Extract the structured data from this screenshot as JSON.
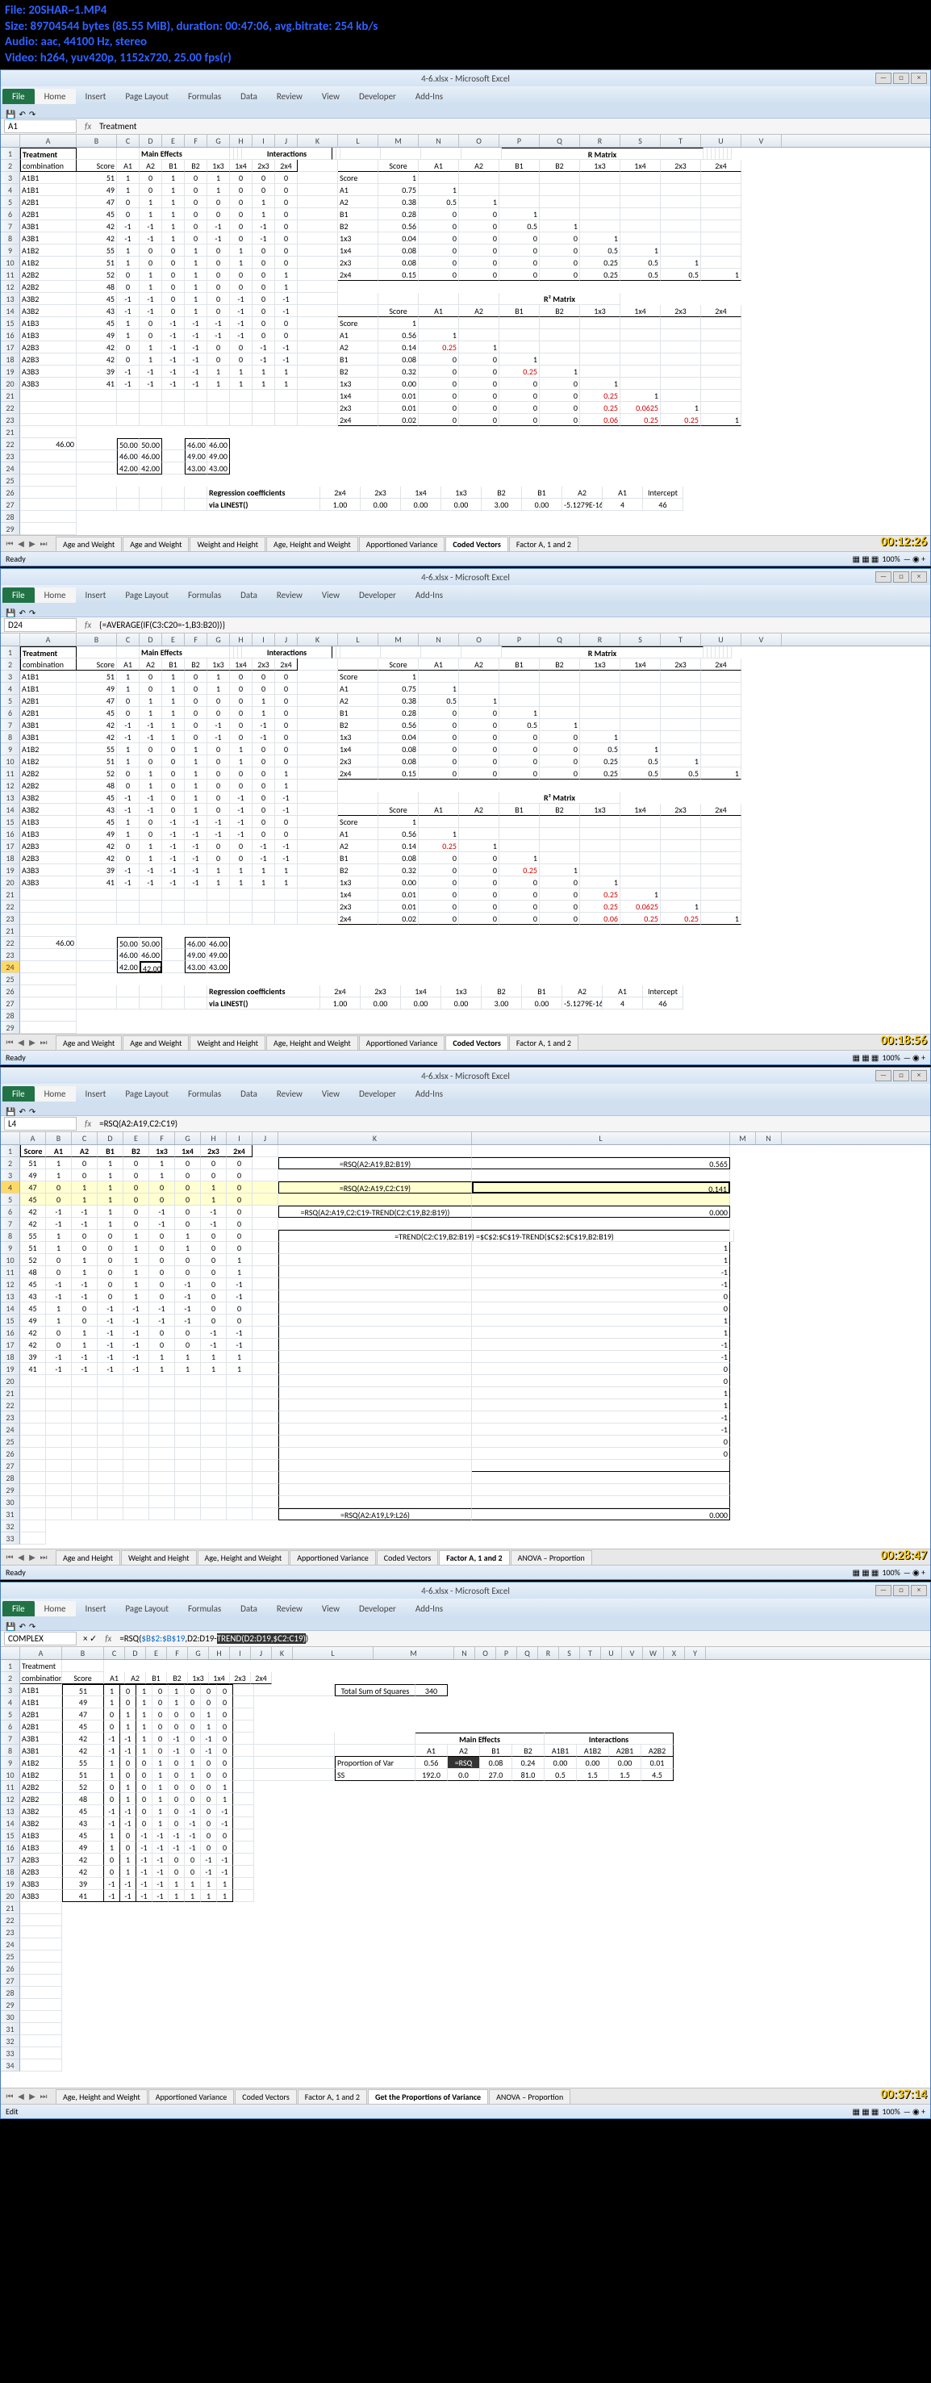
{
  "video": {
    "file": "File: 20SHAR~1.MP4",
    "size": "Size: 89704544 bytes (85.55 MiB), duration: 00:47:06, avg.bitrate: 254 kb/s",
    "audio": "Audio: aac, 44100 Hz, stereo",
    "video_line": "Video: h264, yuv420p, 1152x720, 25.00 fps(r)"
  },
  "pane1": {
    "title": "4-6.xlsx - Microsoft Excel",
    "tabs": [
      "File",
      "Home",
      "Insert",
      "Page Layout",
      "Formulas",
      "Data",
      "Review",
      "View",
      "Developer",
      "Add-Ins"
    ],
    "name_box": "A1",
    "formula": "Treatment",
    "cols": [
      "A",
      "B",
      "C",
      "D",
      "E",
      "F",
      "G",
      "H",
      "I",
      "J",
      "K",
      "L",
      "M",
      "N",
      "O",
      "P",
      "Q",
      "R",
      "S",
      "T",
      "U",
      "V"
    ],
    "headers1": [
      "Treatment",
      "",
      "Main Effects",
      "",
      "",
      "",
      "Interactions",
      "",
      "",
      ""
    ],
    "headers2": [
      "combination",
      "Score",
      "A1",
      "A2",
      "B1",
      "B2",
      "1x3",
      "1x4",
      "2x3",
      "2x4"
    ],
    "data_rows": [
      [
        "A1B1",
        "51",
        "1",
        "0",
        "1",
        "0",
        "1",
        "0",
        "0",
        "0"
      ],
      [
        "A1B1",
        "49",
        "1",
        "0",
        "1",
        "0",
        "1",
        "0",
        "0",
        "0"
      ],
      [
        "A2B1",
        "47",
        "0",
        "1",
        "1",
        "0",
        "0",
        "0",
        "1",
        "0"
      ],
      [
        "A2B1",
        "45",
        "0",
        "1",
        "1",
        "0",
        "0",
        "0",
        "1",
        "0"
      ],
      [
        "A3B1",
        "42",
        "-1",
        "-1",
        "1",
        "0",
        "-1",
        "0",
        "-1",
        "0"
      ],
      [
        "A3B1",
        "42",
        "-1",
        "-1",
        "1",
        "0",
        "-1",
        "0",
        "-1",
        "0"
      ],
      [
        "A1B2",
        "55",
        "1",
        "0",
        "0",
        "1",
        "0",
        "1",
        "0",
        "0"
      ],
      [
        "A1B2",
        "51",
        "1",
        "0",
        "0",
        "1",
        "0",
        "1",
        "0",
        "0"
      ],
      [
        "A2B2",
        "52",
        "0",
        "1",
        "0",
        "1",
        "0",
        "0",
        "0",
        "1"
      ],
      [
        "A2B2",
        "48",
        "0",
        "1",
        "0",
        "1",
        "0",
        "0",
        "0",
        "1"
      ],
      [
        "A3B2",
        "45",
        "-1",
        "-1",
        "0",
        "1",
        "0",
        "-1",
        "0",
        "-1"
      ],
      [
        "A3B2",
        "43",
        "-1",
        "-1",
        "0",
        "1",
        "0",
        "-1",
        "0",
        "-1"
      ],
      [
        "A1B3",
        "45",
        "1",
        "0",
        "-1",
        "-1",
        "-1",
        "-1",
        "0",
        "0"
      ],
      [
        "A1B3",
        "49",
        "1",
        "0",
        "-1",
        "-1",
        "-1",
        "-1",
        "0",
        "0"
      ],
      [
        "A2B3",
        "42",
        "0",
        "1",
        "-1",
        "-1",
        "0",
        "0",
        "-1",
        "-1"
      ],
      [
        "A2B3",
        "42",
        "0",
        "1",
        "-1",
        "-1",
        "0",
        "0",
        "-1",
        "-1"
      ],
      [
        "A3B3",
        "39",
        "-1",
        "-1",
        "-1",
        "-1",
        "1",
        "1",
        "1",
        "1"
      ],
      [
        "A3B3",
        "41",
        "-1",
        "-1",
        "-1",
        "-1",
        "1",
        "1",
        "1",
        "1"
      ]
    ],
    "total": "46.00",
    "box1": [
      [
        "50.00",
        "50.00"
      ],
      [
        "46.00",
        "46.00"
      ],
      [
        "42.00",
        "42.00"
      ]
    ],
    "box2": [
      [
        "46.00",
        "46.00"
      ],
      [
        "49.00",
        "49.00"
      ],
      [
        "43.00",
        "43.00"
      ]
    ],
    "rmatrix_title": "R Matrix",
    "rmatrix_cols": [
      "",
      "Score",
      "A1",
      "A2",
      "B1",
      "B2",
      "1x3",
      "1x4",
      "2x3",
      "2x4"
    ],
    "rmatrix": [
      [
        "Score",
        "1",
        "",
        "",
        "",
        "",
        "",
        "",
        "",
        ""
      ],
      [
        "A1",
        "0.75",
        "1",
        "",
        "",
        "",
        "",
        "",
        "",
        ""
      ],
      [
        "A2",
        "0.38",
        "0.5",
        "1",
        "",
        "",
        "",
        "",
        "",
        ""
      ],
      [
        "B1",
        "0.28",
        "0",
        "0",
        "1",
        "",
        "",
        "",
        "",
        ""
      ],
      [
        "B2",
        "0.56",
        "0",
        "0",
        "0.5",
        "1",
        "",
        "",
        "",
        ""
      ],
      [
        "1x3",
        "0.04",
        "0",
        "0",
        "0",
        "0",
        "1",
        "",
        "",
        ""
      ],
      [
        "1x4",
        "0.08",
        "0",
        "0",
        "0",
        "0",
        "0.5",
        "1",
        "",
        ""
      ],
      [
        "2x3",
        "0.08",
        "0",
        "0",
        "0",
        "0",
        "0.25",
        "0.5",
        "1",
        ""
      ],
      [
        "2x4",
        "0.15",
        "0",
        "0",
        "0",
        "0",
        "0.25",
        "0.5",
        "0.5",
        "1"
      ]
    ],
    "r2matrix_title": "R² Matrix",
    "r2matrix": [
      [
        "Score",
        "1",
        "",
        "",
        "",
        "",
        "",
        "",
        "",
        ""
      ],
      [
        "A1",
        "0.56",
        "1",
        "",
        "",
        "",
        "",
        "",
        "",
        ""
      ],
      [
        "A2",
        "0.14",
        "0.25",
        "1",
        "",
        "",
        "",
        "",
        "",
        ""
      ],
      [
        "B1",
        "0.08",
        "0",
        "0",
        "1",
        "",
        "",
        "",
        "",
        ""
      ],
      [
        "B2",
        "0.32",
        "0",
        "0",
        "0.25",
        "1",
        "",
        "",
        "",
        ""
      ],
      [
        "1x3",
        "0.00",
        "0",
        "0",
        "0",
        "0",
        "1",
        "",
        "",
        ""
      ],
      [
        "1x4",
        "0.01",
        "0",
        "0",
        "0",
        "0",
        "0.25",
        "1",
        "",
        ""
      ],
      [
        "2x3",
        "0.01",
        "0",
        "0",
        "0",
        "0",
        "0.25",
        "0.0625",
        "1",
        ""
      ],
      [
        "2x4",
        "0.02",
        "0",
        "0",
        "0",
        "0",
        "0.06",
        "0.25",
        "0.25",
        "1"
      ]
    ],
    "regr_label": "Regression coefficients",
    "regr_sub": "via LINEST()",
    "regr_cols": [
      "2x4",
      "2x3",
      "1x4",
      "1x3",
      "B2",
      "B1",
      "A2",
      "A1",
      "Intercept"
    ],
    "regr_vals": [
      "1.00",
      "0.00",
      "0.00",
      "0.00",
      "3.00",
      "0.00",
      "-5.1279E-16",
      "4",
      "46"
    ],
    "sheet_tabs": [
      "Age and Weight",
      "Age and Weight",
      "Weight and Height",
      "Age, Height and Weight",
      "Apportioned Variance",
      "Coded Vectors",
      "Factor A, 1 and 2"
    ],
    "active_sheet": 5,
    "status": "Ready",
    "zoom": "100%",
    "timestamp": "00:12:26"
  },
  "pane2": {
    "title": "4-6.xlsx - Microsoft Excel",
    "name_box": "D24",
    "formula": "{=AVERAGE(IF(C3:C20=-1,B3:B20))}",
    "timestamp": "00:18:56"
  },
  "pane3": {
    "title": "4-6.xlsx - Microsoft Excel",
    "name_box": "L4",
    "formula": "=RSQ(A2:A19,C2:C19)",
    "cols": [
      "A",
      "B",
      "C",
      "D",
      "E",
      "F",
      "G",
      "H",
      "I",
      "J",
      "K",
      "L",
      "M",
      "N"
    ],
    "headers": [
      "Score",
      "A1",
      "A2",
      "B1",
      "B2",
      "1x3",
      "1x4",
      "2x3",
      "2x4"
    ],
    "data_rows": [
      [
        "51",
        "1",
        "0",
        "1",
        "0",
        "1",
        "0",
        "0",
        "0"
      ],
      [
        "49",
        "1",
        "0",
        "1",
        "0",
        "1",
        "0",
        "0",
        "0"
      ],
      [
        "47",
        "0",
        "1",
        "1",
        "0",
        "0",
        "0",
        "1",
        "0"
      ],
      [
        "45",
        "0",
        "1",
        "1",
        "0",
        "0",
        "0",
        "1",
        "0"
      ],
      [
        "42",
        "-1",
        "-1",
        "1",
        "0",
        "-1",
        "0",
        "-1",
        "0"
      ],
      [
        "42",
        "-1",
        "-1",
        "1",
        "0",
        "-1",
        "0",
        "-1",
        "0"
      ],
      [
        "55",
        "1",
        "0",
        "0",
        "1",
        "0",
        "1",
        "0",
        "0"
      ],
      [
        "51",
        "1",
        "0",
        "0",
        "1",
        "0",
        "1",
        "0",
        "0"
      ],
      [
        "52",
        "0",
        "1",
        "0",
        "1",
        "0",
        "0",
        "0",
        "1"
      ],
      [
        "48",
        "0",
        "1",
        "0",
        "1",
        "0",
        "0",
        "0",
        "1"
      ],
      [
        "45",
        "-1",
        "-1",
        "0",
        "1",
        "0",
        "-1",
        "0",
        "-1"
      ],
      [
        "43",
        "-1",
        "-1",
        "0",
        "1",
        "0",
        "-1",
        "0",
        "-1"
      ],
      [
        "45",
        "1",
        "0",
        "-1",
        "-1",
        "-1",
        "-1",
        "0",
        "0"
      ],
      [
        "49",
        "1",
        "0",
        "-1",
        "-1",
        "-1",
        "-1",
        "0",
        "0"
      ],
      [
        "42",
        "0",
        "1",
        "-1",
        "-1",
        "0",
        "0",
        "-1",
        "-1"
      ],
      [
        "42",
        "0",
        "1",
        "-1",
        "-1",
        "0",
        "0",
        "-1",
        "-1"
      ],
      [
        "39",
        "-1",
        "-1",
        "-1",
        "-1",
        "1",
        "1",
        "1",
        "1"
      ],
      [
        "41",
        "-1",
        "-1",
        "-1",
        "-1",
        "1",
        "1",
        "1",
        "1"
      ]
    ],
    "formulas": [
      {
        "f": "=RSQ(A2:A19,B2:B19)",
        "v": "0.565"
      },
      {
        "f": "=RSQ(A2:A19,C2:C19)",
        "v": "0.141"
      },
      {
        "f": "=RSQ(A2:A19,C2:C19-TREND(C2:C19,B2:B19))",
        "v": "0.000"
      },
      {
        "f": "=TREND(C2:C19,B2:B19) =$C$2:$C$19-TREND($C$2:$C$19,B2:B19)",
        "v": ""
      }
    ],
    "trend_vals": [
      "1",
      "1",
      "-1",
      "-1",
      "0",
      "0",
      "1",
      "1",
      "-1",
      "-1",
      "0",
      "0",
      "1",
      "1",
      "-1",
      "-1",
      "0",
      "0"
    ],
    "final_formula": "=RSQ(A2:A19,L9:L26)",
    "final_val": "0.000",
    "sheet_tabs": [
      "Age and Height",
      "Weight and Height",
      "Age, Height and Weight",
      "Apportioned Variance",
      "Coded Vectors",
      "Factor A, 1 and 2",
      "ANOVA – Proportion"
    ],
    "active_sheet": 5,
    "timestamp": "00:28:47"
  },
  "pane4": {
    "title": "4-6.xlsx - Microsoft Excel",
    "name_box": "COMPLEX",
    "formula_pre": "=RSQ(",
    "formula_a": "$B$2:$B$19",
    "formula_b": ",D2:D19-",
    "formula_c": "TREND(D2:D19,$C2:C19)",
    "formula_d": ")",
    "cols": [
      "A",
      "B",
      "C",
      "D",
      "E",
      "F",
      "G",
      "H",
      "I",
      "J",
      "K",
      "L",
      "M",
      "N",
      "O",
      "P",
      "Q",
      "R",
      "S",
      "T",
      "U",
      "V",
      "W",
      "X",
      "Y"
    ],
    "headers1": [
      "Treatment",
      "",
      "",
      "",
      "",
      "",
      "",
      "",
      "",
      ""
    ],
    "headers2": [
      "combination",
      "Score",
      "A1",
      "A2",
      "B1",
      "B2",
      "1x3",
      "1x4",
      "2x3",
      "2x4"
    ],
    "data_rows": [
      [
        "A1B1",
        "51",
        "1",
        "0",
        "1",
        "0",
        "1",
        "0",
        "0",
        "0"
      ],
      [
        "A1B1",
        "49",
        "1",
        "0",
        "1",
        "0",
        "1",
        "0",
        "0",
        "0"
      ],
      [
        "A2B1",
        "47",
        "0",
        "1",
        "1",
        "0",
        "0",
        "0",
        "1",
        "0"
      ],
      [
        "A2B1",
        "45",
        "0",
        "1",
        "1",
        "0",
        "0",
        "0",
        "1",
        "0"
      ],
      [
        "A3B1",
        "42",
        "-1",
        "-1",
        "1",
        "0",
        "-1",
        "0",
        "-1",
        "0"
      ],
      [
        "A3B1",
        "42",
        "-1",
        "-1",
        "1",
        "0",
        "-1",
        "0",
        "-1",
        "0"
      ],
      [
        "A1B2",
        "55",
        "1",
        "0",
        "0",
        "1",
        "0",
        "1",
        "0",
        "0"
      ],
      [
        "A1B2",
        "51",
        "1",
        "0",
        "0",
        "1",
        "0",
        "1",
        "0",
        "0"
      ],
      [
        "A2B2",
        "52",
        "0",
        "1",
        "0",
        "1",
        "0",
        "0",
        "0",
        "1"
      ],
      [
        "A2B2",
        "48",
        "0",
        "1",
        "0",
        "1",
        "0",
        "0",
        "0",
        "1"
      ],
      [
        "A3B2",
        "45",
        "-1",
        "-1",
        "0",
        "1",
        "0",
        "-1",
        "0",
        "-1"
      ],
      [
        "A3B2",
        "43",
        "-1",
        "-1",
        "0",
        "1",
        "0",
        "-1",
        "0",
        "-1"
      ],
      [
        "A1B3",
        "45",
        "1",
        "0",
        "-1",
        "-1",
        "-1",
        "-1",
        "0",
        "0"
      ],
      [
        "A1B3",
        "49",
        "1",
        "0",
        "-1",
        "-1",
        "-1",
        "-1",
        "0",
        "0"
      ],
      [
        "A2B3",
        "42",
        "0",
        "1",
        "-1",
        "-1",
        "0",
        "0",
        "-1",
        "-1"
      ],
      [
        "A2B3",
        "42",
        "0",
        "1",
        "-1",
        "-1",
        "0",
        "0",
        "-1",
        "-1"
      ],
      [
        "A3B3",
        "39",
        "-1",
        "-1",
        "-1",
        "-1",
        "1",
        "1",
        "1",
        "1"
      ],
      [
        "A3B3",
        "41",
        "-1",
        "-1",
        "-1",
        "-1",
        "1",
        "1",
        "1",
        "1"
      ]
    ],
    "tss_label": "Total Sum of Squares",
    "tss_val": "340",
    "me_label": "Main Effects",
    "int_label": "Interactions",
    "var_cols": [
      "A1",
      "A2",
      "B1",
      "B2",
      "A1B1",
      "A1B2",
      "A2B1",
      "A2B2"
    ],
    "prop_label": "Proportion of Var",
    "prop_vals": [
      "0.56",
      "=RSQ",
      "0.08",
      "0.24",
      "0.00",
      "0.00",
      "0.00",
      "0.01"
    ],
    "ss_label": "SS",
    "ss_vals": [
      "192.0",
      "0.0",
      "27.0",
      "81.0",
      "0.5",
      "1.5",
      "1.5",
      "4.5"
    ],
    "sheet_tabs": [
      "Age, Height and Weight",
      "Apportioned Variance",
      "Coded Vectors",
      "Factor A, 1 and 2",
      "Get the Proportions of Variance",
      "ANOVA – Proportion"
    ],
    "active_sheet": 4,
    "timestamp": "00:37:14"
  }
}
